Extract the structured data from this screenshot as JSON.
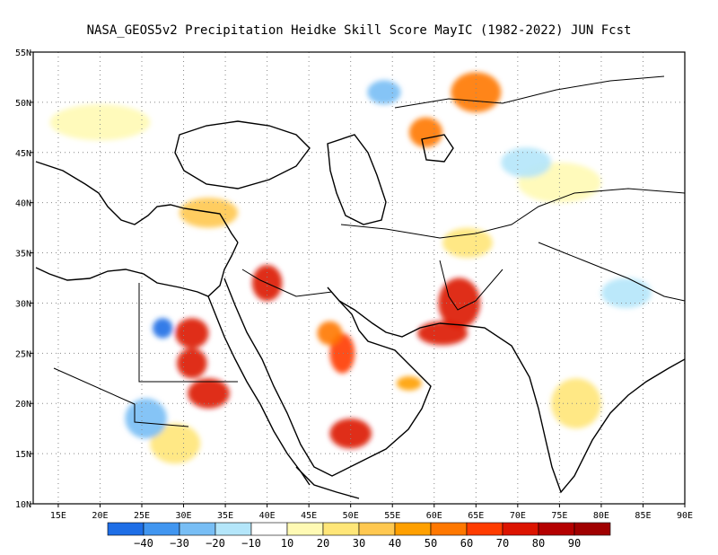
{
  "title": "NASA_GEOS5v2  Precipitation Heidke Skill Score MayIC (1982-2022) JUN Fcst",
  "chart_data": {
    "type": "heatmap",
    "lon_range": [
      12,
      90
    ],
    "lat_range": [
      10,
      55
    ],
    "x_ticks": [
      "15E",
      "20E",
      "25E",
      "30E",
      "35E",
      "40E",
      "45E",
      "50E",
      "55E",
      "60E",
      "65E",
      "70E",
      "75E",
      "80E",
      "85E",
      "90E"
    ],
    "x_tick_values": [
      15,
      20,
      25,
      30,
      35,
      40,
      45,
      50,
      55,
      60,
      65,
      70,
      75,
      80,
      85,
      90
    ],
    "y_ticks": [
      "10N",
      "15N",
      "20N",
      "25N",
      "30N",
      "35N",
      "40N",
      "45N",
      "50N",
      "55N"
    ],
    "y_tick_values": [
      10,
      15,
      20,
      25,
      30,
      35,
      40,
      45,
      50,
      55
    ],
    "grid": true,
    "colorbar": {
      "labels": [
        "−40",
        "−30",
        "−20",
        "−10",
        "10",
        "20",
        "30",
        "40",
        "50",
        "60",
        "70",
        "80",
        "90"
      ],
      "colors": [
        "#1e6ee6",
        "#4196f0",
        "#78bef5",
        "#b4e6fa",
        "#ffffff",
        "#fffab4",
        "#ffe678",
        "#ffc850",
        "#ffa000",
        "#ff7800",
        "#ff3c00",
        "#dc1400",
        "#b40000",
        "#a00000"
      ]
    },
    "regions": [
      {
        "lon": 63,
        "lat": 30,
        "rx": 2.5,
        "ry": 2.5,
        "value": 70,
        "color": "#dc1400"
      },
      {
        "lon": 61,
        "lat": 27,
        "rx": 3,
        "ry": 1.2,
        "value": 80,
        "color": "#dc1400"
      },
      {
        "lon": 40,
        "lat": 32,
        "rx": 1.8,
        "ry": 1.8,
        "value": 80,
        "color": "#dc1400"
      },
      {
        "lon": 31,
        "lat": 27,
        "rx": 2,
        "ry": 1.5,
        "value": 80,
        "color": "#dc1400"
      },
      {
        "lon": 31,
        "lat": 24,
        "rx": 1.8,
        "ry": 1.5,
        "value": 80,
        "color": "#dc1400"
      },
      {
        "lon": 33,
        "lat": 21,
        "rx": 2.5,
        "ry": 1.5,
        "value": 80,
        "color": "#dc1400"
      },
      {
        "lon": 50,
        "lat": 17,
        "rx": 2.5,
        "ry": 1.5,
        "value": 80,
        "color": "#dc1400"
      },
      {
        "lon": 49,
        "lat": 25,
        "rx": 1.5,
        "ry": 2,
        "value": 70,
        "color": "#ff3c00"
      },
      {
        "lon": 47.5,
        "lat": 27,
        "rx": 1.5,
        "ry": 1.2,
        "value": 60,
        "color": "#ff7800"
      },
      {
        "lon": 57,
        "lat": 22,
        "rx": 1.5,
        "ry": 0.7,
        "value": 50,
        "color": "#ffa000"
      },
      {
        "lon": 33,
        "lat": 39,
        "rx": 3.5,
        "ry": 1.5,
        "value": 40,
        "color": "#ffc850"
      },
      {
        "lon": 64,
        "lat": 36,
        "rx": 3,
        "ry": 1.5,
        "value": 30,
        "color": "#ffe678"
      },
      {
        "lon": 77,
        "lat": 20,
        "rx": 3,
        "ry": 2.5,
        "value": 30,
        "color": "#ffe678"
      },
      {
        "lon": 29,
        "lat": 16,
        "rx": 3,
        "ry": 2,
        "value": 30,
        "color": "#ffe678"
      },
      {
        "lon": 65,
        "lat": 51,
        "rx": 3,
        "ry": 2,
        "value": 40,
        "color": "#ff7800"
      },
      {
        "lon": 59,
        "lat": 47,
        "rx": 2,
        "ry": 1.5,
        "value": 50,
        "color": "#ff7800"
      },
      {
        "lon": 25.5,
        "lat": 18.5,
        "rx": 2.5,
        "ry": 2,
        "value": -30,
        "color": "#78bef5"
      },
      {
        "lon": 27.5,
        "lat": 27.5,
        "rx": 1.2,
        "ry": 1,
        "value": -40,
        "color": "#1e6ee6"
      },
      {
        "lon": 83,
        "lat": 31,
        "rx": 3,
        "ry": 1.5,
        "value": -20,
        "color": "#b4e6fa"
      },
      {
        "lon": 54,
        "lat": 51,
        "rx": 2,
        "ry": 1.2,
        "value": -20,
        "color": "#78bef5"
      },
      {
        "lon": 75,
        "lat": 42,
        "rx": 5,
        "ry": 2,
        "value": 20,
        "color": "#fffab4"
      },
      {
        "lon": 20,
        "lat": 48,
        "rx": 6,
        "ry": 1.8,
        "value": 20,
        "color": "#fffab4"
      },
      {
        "lon": 71,
        "lat": 44,
        "rx": 3,
        "ry": 1.5,
        "value": -10,
        "color": "#b4e6fa"
      }
    ]
  }
}
